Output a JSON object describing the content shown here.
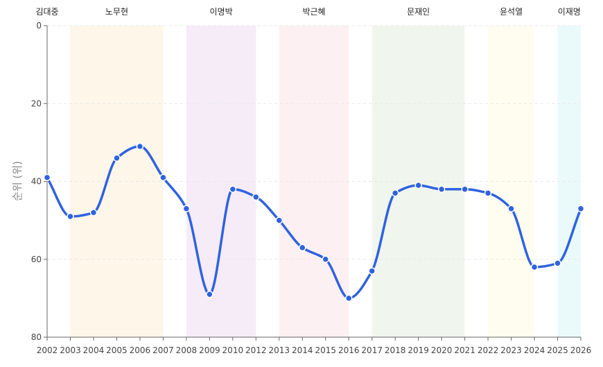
{
  "chart_data": {
    "type": "line",
    "ylabel": "순위 (위)",
    "ylim": [
      80,
      0
    ],
    "yticks": [
      0,
      20,
      40,
      60,
      80
    ],
    "categories": [
      "2002",
      "2003",
      "2004",
      "2005",
      "2006",
      "2007",
      "2008",
      "2009",
      "2010",
      "2012",
      "2013",
      "2014",
      "2015",
      "2016",
      "2017",
      "2018",
      "2019",
      "2020",
      "2021",
      "2022",
      "2023",
      "2024",
      "2025",
      "2026"
    ],
    "values": [
      39,
      49,
      48,
      34,
      31,
      39,
      47,
      69,
      42,
      44,
      50,
      57,
      60,
      70,
      63,
      43,
      41,
      42,
      42,
      43,
      47,
      62,
      61,
      47
    ],
    "line_color": "#2f62e0",
    "grid": "horizontal dashed",
    "bands": [
      {
        "label": "김대중",
        "start": "2002",
        "end": "2002",
        "color": ""
      },
      {
        "label": "노무현",
        "start": "2003",
        "end": "2007",
        "color": "#fdf6e9"
      },
      {
        "label": "이명박",
        "start": "2008",
        "end": "2012",
        "color": "#f5ecf7"
      },
      {
        "label": "박근혜",
        "start": "2013",
        "end": "2016",
        "color": "#fdf0f2"
      },
      {
        "label": "문재인",
        "start": "2017",
        "end": "2021",
        "color": "#f0f6ee"
      },
      {
        "label": "윤석열",
        "start": "2022",
        "end": "2024",
        "color": "#fffdef"
      },
      {
        "label": "이재명",
        "start": "2025",
        "end": "2026",
        "color": "#eafafb"
      }
    ]
  }
}
